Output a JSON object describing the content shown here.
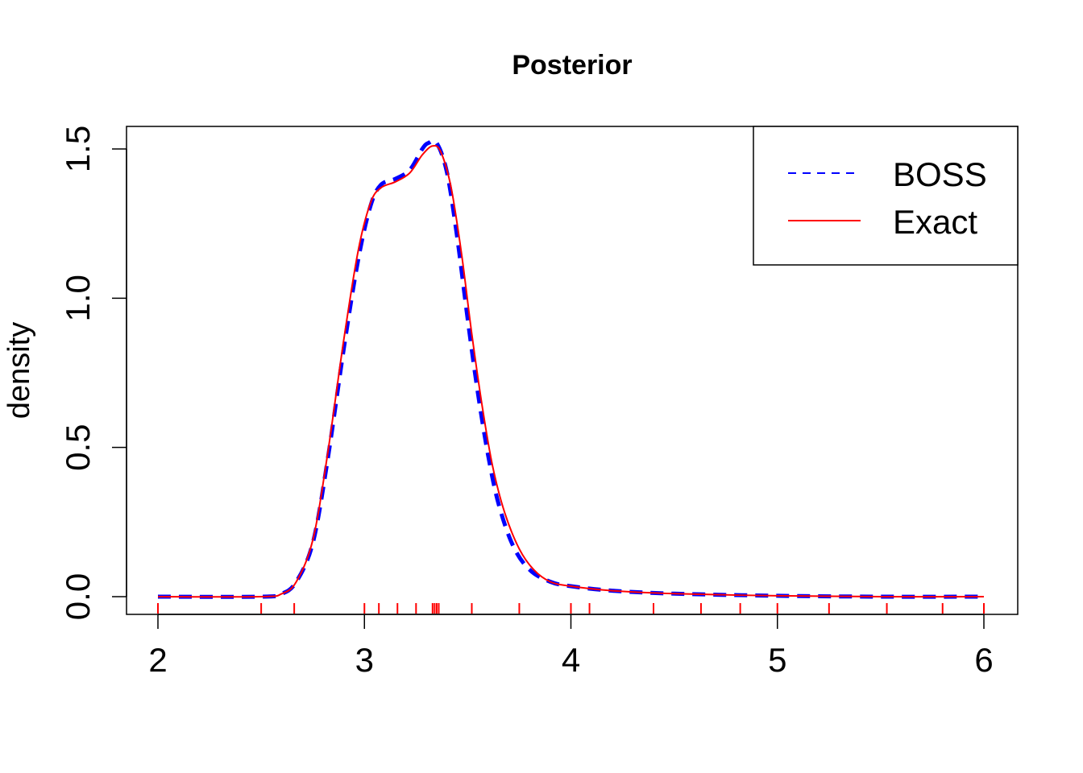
{
  "chart_data": {
    "type": "line",
    "title": "Posterior",
    "xlabel": "",
    "ylabel": "density",
    "xlim": [
      2,
      6
    ],
    "ylim": [
      0,
      1.5
    ],
    "x_ticks": [
      "2",
      "3",
      "4",
      "5",
      "6"
    ],
    "y_ticks": [
      "0.0",
      "0.5",
      "1.0",
      "1.5"
    ],
    "legend_position": "top-right",
    "series": [
      {
        "name": "BOSS",
        "color": "#0000ff",
        "style": "dashed",
        "points": [
          [
            2.0,
            0.0
          ],
          [
            2.5,
            0.0
          ],
          [
            2.6,
            0.01
          ],
          [
            2.67,
            0.05
          ],
          [
            2.75,
            0.18
          ],
          [
            2.82,
            0.45
          ],
          [
            2.9,
            0.83
          ],
          [
            2.97,
            1.13
          ],
          [
            3.03,
            1.31
          ],
          [
            3.08,
            1.38
          ],
          [
            3.15,
            1.4
          ],
          [
            3.22,
            1.43
          ],
          [
            3.28,
            1.5
          ],
          [
            3.31,
            1.52
          ],
          [
            3.35,
            1.52
          ],
          [
            3.4,
            1.42
          ],
          [
            3.45,
            1.2
          ],
          [
            3.5,
            0.93
          ],
          [
            3.55,
            0.68
          ],
          [
            3.6,
            0.47
          ],
          [
            3.65,
            0.31
          ],
          [
            3.72,
            0.17
          ],
          [
            3.8,
            0.09
          ],
          [
            3.9,
            0.05
          ],
          [
            4.0,
            0.035
          ],
          [
            4.2,
            0.02
          ],
          [
            4.5,
            0.01
          ],
          [
            5.0,
            0.003
          ],
          [
            5.5,
            0.0
          ],
          [
            6.0,
            0.0
          ]
        ]
      },
      {
        "name": "Exact",
        "color": "#ff0000",
        "style": "solid",
        "points": [
          [
            2.0,
            0.0
          ],
          [
            2.5,
            0.0
          ],
          [
            2.6,
            0.01
          ],
          [
            2.67,
            0.05
          ],
          [
            2.75,
            0.19
          ],
          [
            2.82,
            0.47
          ],
          [
            2.9,
            0.86
          ],
          [
            2.97,
            1.16
          ],
          [
            3.03,
            1.32
          ],
          [
            3.08,
            1.37
          ],
          [
            3.15,
            1.39
          ],
          [
            3.22,
            1.42
          ],
          [
            3.28,
            1.48
          ],
          [
            3.33,
            1.51
          ],
          [
            3.37,
            1.49
          ],
          [
            3.42,
            1.37
          ],
          [
            3.47,
            1.15
          ],
          [
            3.52,
            0.88
          ],
          [
            3.57,
            0.64
          ],
          [
            3.62,
            0.44
          ],
          [
            3.68,
            0.28
          ],
          [
            3.75,
            0.16
          ],
          [
            3.82,
            0.09
          ],
          [
            3.9,
            0.05
          ],
          [
            4.0,
            0.035
          ],
          [
            4.2,
            0.02
          ],
          [
            4.5,
            0.01
          ],
          [
            5.0,
            0.003
          ],
          [
            5.5,
            0.0
          ],
          [
            6.0,
            0.0
          ]
        ]
      }
    ],
    "rug": {
      "color": "#ff0000",
      "x": [
        2.0,
        2.5,
        2.66,
        3.0,
        3.07,
        3.16,
        3.25,
        3.33,
        3.34,
        3.35,
        3.36,
        3.52,
        3.75,
        4.0,
        4.09,
        4.4,
        4.63,
        4.82,
        5.0,
        5.25,
        5.53,
        5.8,
        6.0
      ]
    }
  }
}
